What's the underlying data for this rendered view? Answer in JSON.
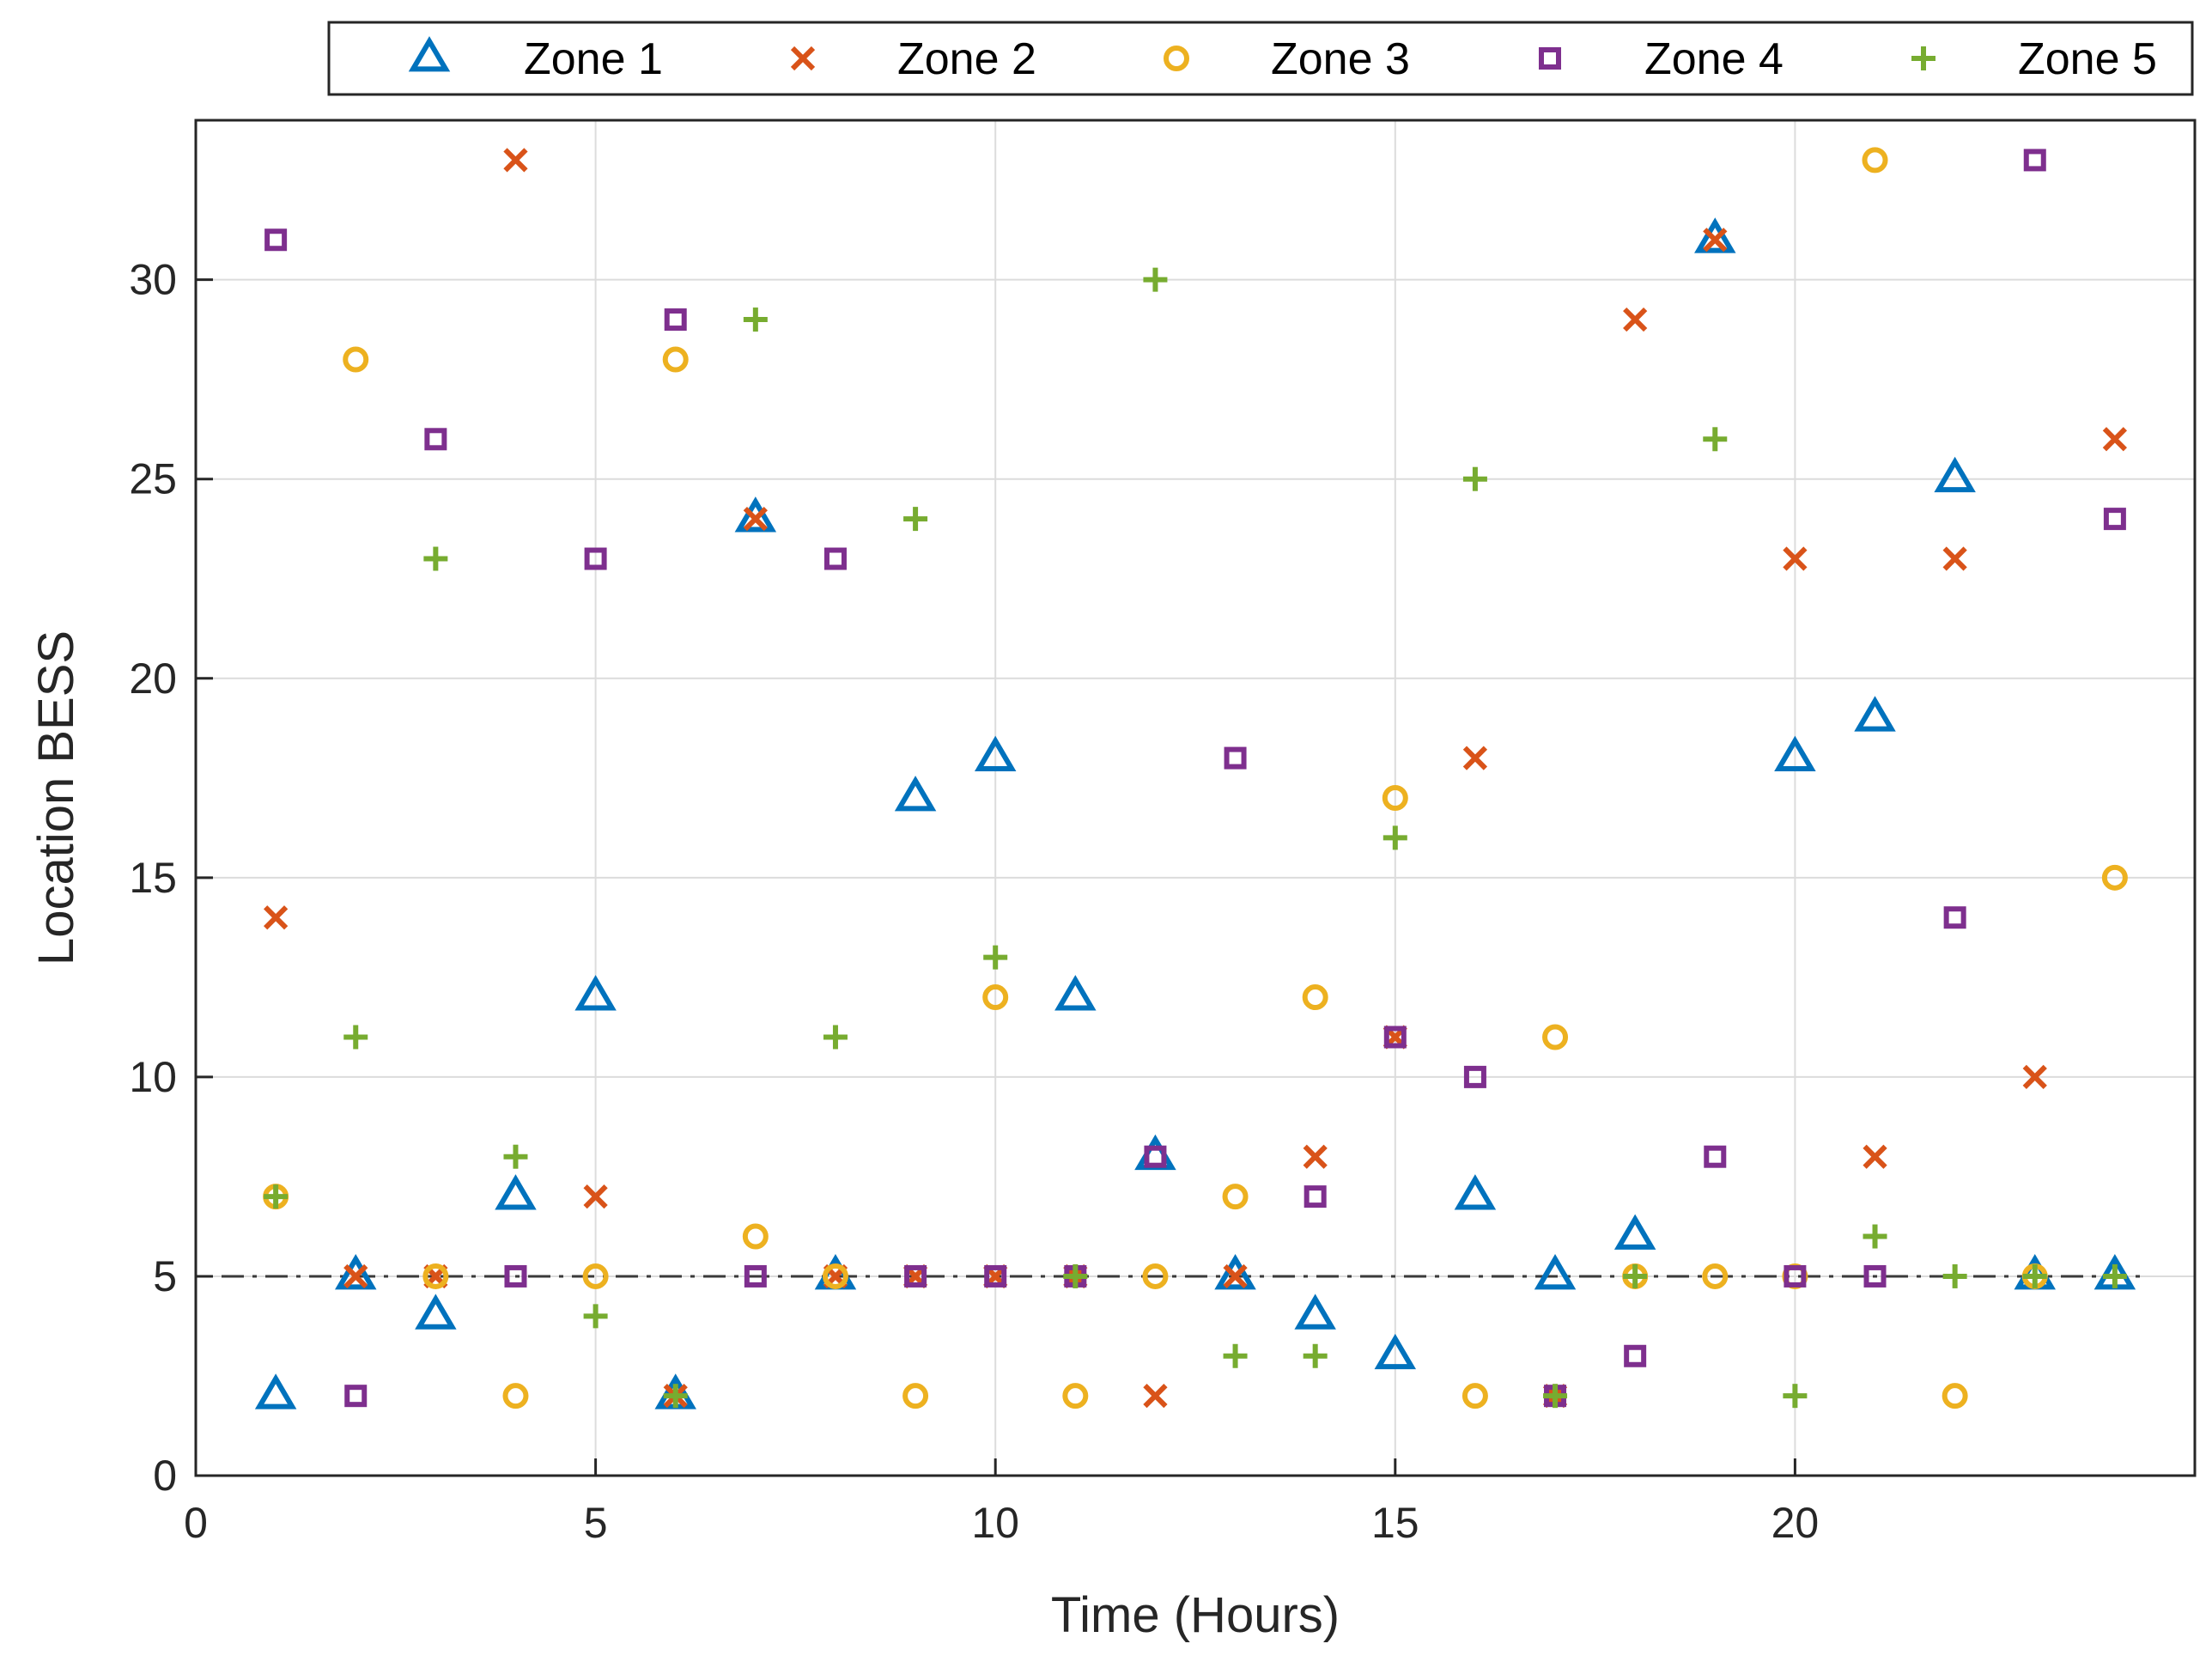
{
  "chart_data": {
    "type": "scatter",
    "title": "",
    "xlabel": "Time (Hours)",
    "ylabel": "Location BESS",
    "xlim": [
      0,
      25
    ],
    "ylim": [
      0,
      34
    ],
    "xticks": [
      0,
      5,
      10,
      15,
      20
    ],
    "yticks": [
      0,
      5,
      10,
      15,
      20,
      25,
      30
    ],
    "grid": true,
    "legend_position": "top",
    "reference_line": {
      "y": 5,
      "style": "dash-dot"
    },
    "x": [
      1,
      2,
      3,
      4,
      5,
      6,
      7,
      8,
      9,
      10,
      11,
      12,
      13,
      14,
      15,
      16,
      17,
      18,
      19,
      20,
      21,
      22,
      23,
      24
    ],
    "series": [
      {
        "name": "Zone 1",
        "marker": "triangle",
        "color": "#0072BD",
        "values": [
          2,
          5,
          4,
          7,
          12,
          2,
          24,
          5,
          17,
          18,
          12,
          8,
          5,
          4,
          3,
          7,
          5,
          6,
          31,
          18,
          19,
          25,
          5,
          5
        ]
      },
      {
        "name": "Zone 2",
        "marker": "x",
        "color": "#D95319",
        "values": [
          14,
          5,
          5,
          33,
          7,
          2,
          24,
          5,
          5,
          5,
          5,
          2,
          5,
          8,
          11,
          18,
          2,
          29,
          31,
          23,
          8,
          23,
          10,
          26
        ]
      },
      {
        "name": "Zone 3",
        "marker": "circle",
        "color": "#EDB120",
        "values": [
          7,
          28,
          5,
          2,
          5,
          28,
          6,
          5,
          2,
          12,
          2,
          5,
          7,
          12,
          17,
          2,
          11,
          5,
          5,
          5,
          33,
          2,
          5,
          15
        ]
      },
      {
        "name": "Zone 4",
        "marker": "square",
        "color": "#7E2F8E",
        "values": [
          31,
          2,
          26,
          5,
          23,
          29,
          5,
          23,
          5,
          5,
          5,
          8,
          18,
          7,
          11,
          10,
          2,
          3,
          8,
          5,
          5,
          14,
          33,
          24
        ]
      },
      {
        "name": "Zone 5",
        "marker": "plus",
        "color": "#77AC30",
        "values": [
          7,
          11,
          23,
          8,
          4,
          2,
          29,
          11,
          24,
          13,
          5,
          30,
          3,
          3,
          16,
          25,
          2,
          5,
          26,
          2,
          6,
          5,
          5,
          5
        ]
      }
    ]
  }
}
